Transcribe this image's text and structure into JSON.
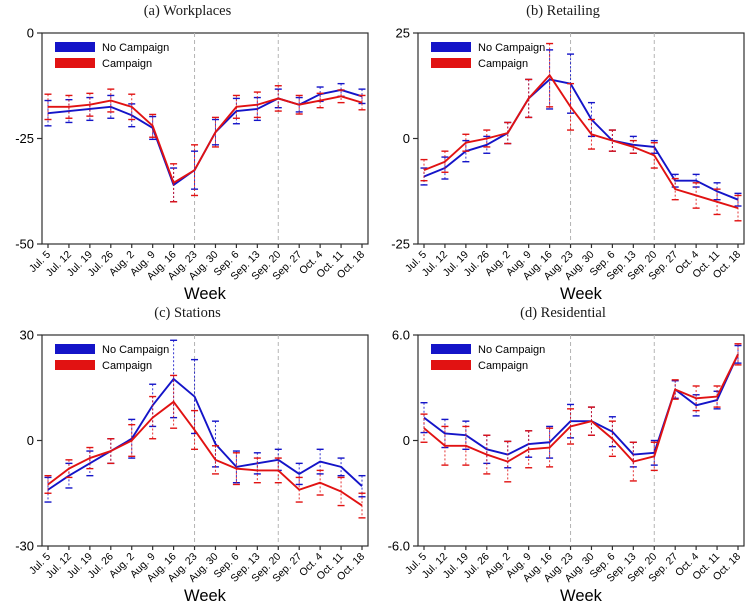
{
  "figure": {
    "xlabel": "Week",
    "legend_labels": [
      "No Campaign",
      "Campaign"
    ],
    "vline_categories": [
      "Aug. 23",
      "Sep. 20"
    ],
    "colors": {
      "no_campaign_blue": "#1414c8",
      "campaign_red": "#e11212",
      "vline_gray": "#b4b4b4",
      "axis": "#2e2e2e",
      "background": "#ffffff"
    },
    "categories": [
      "Jul. 5",
      "Jul. 12",
      "Jul. 19",
      "Jul. 26",
      "Aug. 2",
      "Aug. 9",
      "Aug. 16",
      "Aug. 23",
      "Aug. 30",
      "Sep. 6",
      "Sep. 13",
      "Sep. 20",
      "Sep. 27",
      "Oct. 4",
      "Oct. 11",
      "Oct. 18"
    ]
  },
  "chart_data": [
    {
      "type": "line",
      "title": "(a) Workplaces",
      "xlabel": "Week",
      "categories": [
        "Jul. 5",
        "Jul. 12",
        "Jul. 19",
        "Jul. 26",
        "Aug. 2",
        "Aug. 9",
        "Aug. 16",
        "Aug. 23",
        "Aug. 30",
        "Sep. 6",
        "Sep. 13",
        "Sep. 20",
        "Sep. 27",
        "Oct. 4",
        "Oct. 11",
        "Oct. 18"
      ],
      "ylim": [
        -50,
        0
      ],
      "yticks": [
        {
          "label": "0",
          "value": 0
        },
        {
          "label": "-25",
          "value": -25
        },
        {
          "label": "-50",
          "value": -50
        }
      ],
      "vline_indices": [
        7,
        11
      ],
      "legend_position": "top-left",
      "grid": false,
      "series": [
        {
          "name": "No Campaign",
          "color": "#1414c8",
          "values": [
            -19,
            -18.5,
            -18,
            -17.5,
            -19.5,
            -22.5,
            -36,
            -32.5,
            -23.5,
            -18.5,
            -18,
            -15.5,
            -17,
            -14.5,
            -13.5,
            -15
          ],
          "ci": [
            3,
            2.7,
            2.7,
            2.7,
            2.7,
            2.7,
            4,
            4.5,
            3,
            3,
            2.7,
            2.2,
            1.7,
            1.7,
            1.5,
            1.7
          ]
        },
        {
          "name": "Campaign",
          "color": "#e11212",
          "values": [
            -17.5,
            -17.5,
            -17,
            -16,
            -17.5,
            -22,
            -35.5,
            -32.5,
            -23.5,
            -17.5,
            -17,
            -15.5,
            -17,
            -16,
            -15,
            -16.5
          ],
          "ci": [
            3,
            2.7,
            2.7,
            2.7,
            3,
            2.7,
            4.5,
            6,
            3.5,
            2.7,
            3,
            3,
            2.2,
            1.7,
            1.5,
            1.7
          ]
        }
      ]
    },
    {
      "type": "line",
      "title": "(b) Retailing",
      "xlabel": "Week",
      "categories": [
        "Jul. 5",
        "Jul. 12",
        "Jul. 19",
        "Jul. 26",
        "Aug. 2",
        "Aug. 9",
        "Aug. 16",
        "Aug. 23",
        "Aug. 30",
        "Sep. 6",
        "Sep. 13",
        "Sep. 20",
        "Sep. 27",
        "Oct. 4",
        "Oct. 11",
        "Oct. 18"
      ],
      "ylim": [
        -25,
        25
      ],
      "yticks": [
        {
          "label": "25",
          "value": 25
        },
        {
          "label": "0",
          "value": 0
        },
        {
          "label": "-25",
          "value": -25
        }
      ],
      "vline_indices": [
        7,
        11
      ],
      "legend_position": "top-left",
      "grid": false,
      "series": [
        {
          "name": "No Campaign",
          "color": "#1414c8",
          "values": [
            -9,
            -7,
            -3,
            -1.5,
            1.3,
            9.5,
            14,
            13,
            4.5,
            -0.5,
            -1.5,
            -2,
            -10,
            -10,
            -12.5,
            -14.5
          ],
          "ci": [
            2,
            2.6,
            2.5,
            2,
            2.5,
            4.5,
            7,
            7,
            4,
            2.5,
            2,
            1.5,
            1.5,
            1.5,
            2,
            1.5
          ]
        },
        {
          "name": "Campaign",
          "color": "#e11212",
          "values": [
            -7.5,
            -5.5,
            -1,
            0,
            1.3,
            9.5,
            15,
            7.5,
            1,
            -0.5,
            -2,
            -4,
            -12,
            -13.5,
            -15,
            -16.5
          ],
          "ci": [
            2.5,
            2.5,
            2,
            2,
            2.5,
            4.5,
            7.5,
            5.5,
            3.5,
            2.5,
            1.5,
            3,
            2.5,
            3,
            3,
            3
          ]
        }
      ]
    },
    {
      "type": "line",
      "title": "(c) Stations",
      "xlabel": "Week",
      "categories": [
        "Jul. 5",
        "Jul. 12",
        "Jul. 19",
        "Jul. 26",
        "Aug. 2",
        "Aug. 9",
        "Aug. 16",
        "Aug. 23",
        "Aug. 30",
        "Sep. 6",
        "Sep. 13",
        "Sep. 20",
        "Sep. 27",
        "Oct. 4",
        "Oct. 11",
        "Oct. 18"
      ],
      "ylim": [
        -30,
        30
      ],
      "yticks": [
        {
          "label": "30",
          "value": 30
        },
        {
          "label": "0",
          "value": 0
        },
        {
          "label": "-30",
          "value": -30
        }
      ],
      "vline_indices": [
        7,
        11
      ],
      "legend_position": "top-left",
      "grid": false,
      "series": [
        {
          "name": "No Campaign",
          "color": "#1414c8",
          "values": [
            -14,
            -10,
            -6.5,
            -3,
            0.5,
            10,
            17.5,
            12.5,
            -1,
            -7.5,
            -6.5,
            -5.5,
            -9.5,
            -6,
            -7.5,
            -13
          ],
          "ci": [
            3.5,
            3.5,
            3.5,
            3.5,
            5.5,
            6,
            11,
            10.5,
            6.5,
            4.5,
            3,
            3,
            3,
            3.5,
            2.5,
            3
          ]
        },
        {
          "name": "Campaign",
          "color": "#e11212",
          "values": [
            -12.5,
            -8,
            -5,
            -3,
            0,
            6.5,
            11,
            3,
            -5.5,
            -8,
            -8.5,
            -8.5,
            -14,
            -12,
            -14.5,
            -18.5
          ],
          "ci": [
            2.5,
            2.5,
            3,
            3.5,
            4.5,
            6,
            7.5,
            5.5,
            4,
            4.5,
            3.5,
            3.5,
            3.5,
            3.5,
            4,
            3.5
          ]
        }
      ]
    },
    {
      "type": "line",
      "title": "(d) Residential",
      "xlabel": "Week",
      "categories": [
        "Jul. 5",
        "Jul. 12",
        "Jul. 19",
        "Jul. 26",
        "Aug. 2",
        "Aug. 9",
        "Aug. 16",
        "Aug. 23",
        "Aug. 30",
        "Sep. 6",
        "Sep. 13",
        "Sep. 20",
        "Sep. 27",
        "Oct. 4",
        "Oct. 11",
        "Oct. 18"
      ],
      "ylim": [
        -6,
        6
      ],
      "yticks": [
        {
          "label": "6.0",
          "value": 6
        },
        {
          "label": "0",
          "value": 0
        },
        {
          "label": "-6.0",
          "value": -6
        }
      ],
      "vline_indices": [
        7,
        11
      ],
      "legend_position": "top-left",
      "grid": false,
      "series": [
        {
          "name": "No Campaign",
          "color": "#1414c8",
          "values": [
            1.3,
            0.4,
            0.3,
            -0.5,
            -0.8,
            -0.2,
            -0.1,
            1.1,
            1.1,
            0.5,
            -0.8,
            -0.7,
            2.9,
            2.0,
            2.3,
            4.9
          ],
          "ci": [
            0.85,
            0.8,
            0.8,
            0.8,
            0.75,
            0.75,
            0.9,
            0.95,
            0.8,
            0.85,
            0.7,
            0.7,
            0.5,
            0.6,
            0.5,
            0.5
          ]
        },
        {
          "name": "Campaign",
          "color": "#e11212",
          "values": [
            0.7,
            -0.3,
            -0.3,
            -0.8,
            -1.2,
            -0.5,
            -0.4,
            0.8,
            1.1,
            0.1,
            -1.2,
            -0.9,
            2.9,
            2.4,
            2.5,
            4.9
          ],
          "ci": [
            0.8,
            1.1,
            1.1,
            1.1,
            1.15,
            1.05,
            1.1,
            1.0,
            0.8,
            1.0,
            1.1,
            0.8,
            0.55,
            0.7,
            0.6,
            0.6
          ]
        }
      ]
    }
  ]
}
